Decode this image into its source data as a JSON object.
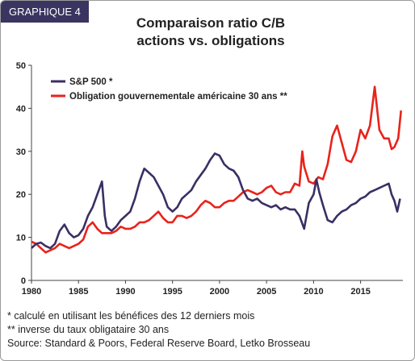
{
  "header": {
    "tag": "GRAPHIQUE 4",
    "title_line1": "Comparaison ratio C/B",
    "title_line2": "actions vs. obligations"
  },
  "footnotes": [
    "* calculé en utilisant les bénéfices des 12 derniers mois",
    "** inverse du taux obligataire 30 ans",
    "Source: Standard & Poors, Federal Reserve Board, Letko Brosseau"
  ],
  "colors": {
    "sp500": "#3a2f63",
    "bond": "#e8231b",
    "axis": "#444444"
  },
  "chart_data": {
    "type": "line",
    "xlim": [
      1980,
      2019.5
    ],
    "ylim": [
      0,
      50
    ],
    "x_ticks": [
      1980,
      1985,
      1990,
      1995,
      2000,
      2005,
      2010,
      2015
    ],
    "y_ticks": [
      0,
      10,
      20,
      30,
      40,
      50
    ],
    "legend_position": "top-left",
    "grid": false,
    "series": [
      {
        "name": "S&P 500 *",
        "color": "#3a2f63",
        "points": [
          [
            1980.0,
            7.5
          ],
          [
            1980.5,
            8.5
          ],
          [
            1981.0,
            8.8
          ],
          [
            1981.5,
            8.0
          ],
          [
            1982.0,
            7.5
          ],
          [
            1982.5,
            8.5
          ],
          [
            1983.0,
            11.5
          ],
          [
            1983.5,
            13.0
          ],
          [
            1984.0,
            11.0
          ],
          [
            1984.5,
            10.0
          ],
          [
            1985.0,
            10.5
          ],
          [
            1985.5,
            12.0
          ],
          [
            1986.0,
            15.0
          ],
          [
            1986.5,
            17.0
          ],
          [
            1987.0,
            20.0
          ],
          [
            1987.5,
            23.0
          ],
          [
            1987.8,
            15.0
          ],
          [
            1988.0,
            12.5
          ],
          [
            1988.5,
            11.5
          ],
          [
            1989.0,
            12.5
          ],
          [
            1989.5,
            14.0
          ],
          [
            1990.0,
            15.0
          ],
          [
            1990.5,
            16.0
          ],
          [
            1991.0,
            19.0
          ],
          [
            1991.5,
            23.0
          ],
          [
            1992.0,
            26.0
          ],
          [
            1992.5,
            25.0
          ],
          [
            1993.0,
            24.0
          ],
          [
            1993.5,
            22.0
          ],
          [
            1994.0,
            20.0
          ],
          [
            1994.5,
            17.0
          ],
          [
            1995.0,
            16.0
          ],
          [
            1995.5,
            17.0
          ],
          [
            1996.0,
            19.0
          ],
          [
            1996.5,
            20.0
          ],
          [
            1997.0,
            21.0
          ],
          [
            1997.5,
            23.0
          ],
          [
            1998.0,
            24.5
          ],
          [
            1998.5,
            26.0
          ],
          [
            1999.0,
            28.0
          ],
          [
            1999.5,
            29.5
          ],
          [
            2000.0,
            29.0
          ],
          [
            2000.5,
            27.0
          ],
          [
            2001.0,
            26.0
          ],
          [
            2001.5,
            25.5
          ],
          [
            2002.0,
            24.0
          ],
          [
            2002.5,
            21.0
          ],
          [
            2003.0,
            19.0
          ],
          [
            2003.5,
            18.5
          ],
          [
            2004.0,
            19.0
          ],
          [
            2004.5,
            18.0
          ],
          [
            2005.0,
            17.5
          ],
          [
            2005.5,
            17.0
          ],
          [
            2006.0,
            17.5
          ],
          [
            2006.5,
            16.5
          ],
          [
            2007.0,
            17.0
          ],
          [
            2007.5,
            16.5
          ],
          [
            2008.0,
            16.5
          ],
          [
            2008.5,
            15.0
          ],
          [
            2009.0,
            12.0
          ],
          [
            2009.5,
            18.0
          ],
          [
            2010.0,
            20.0
          ],
          [
            2010.3,
            23.5
          ],
          [
            2010.6,
            20.5
          ],
          [
            2011.0,
            17.5
          ],
          [
            2011.5,
            14.0
          ],
          [
            2012.0,
            13.5
          ],
          [
            2012.5,
            15.0
          ],
          [
            2013.0,
            16.0
          ],
          [
            2013.5,
            16.5
          ],
          [
            2014.0,
            17.5
          ],
          [
            2014.5,
            18.0
          ],
          [
            2015.0,
            19.0
          ],
          [
            2015.5,
            19.5
          ],
          [
            2016.0,
            20.5
          ],
          [
            2016.5,
            21.0
          ],
          [
            2017.0,
            21.5
          ],
          [
            2017.5,
            22.0
          ],
          [
            2018.0,
            22.5
          ],
          [
            2018.3,
            20.0
          ],
          [
            2018.6,
            18.5
          ],
          [
            2018.9,
            16.0
          ],
          [
            2019.2,
            19.0
          ]
        ]
      },
      {
        "name": "Obligation gouvernementale américaine 30 ans **",
        "color": "#e8231b",
        "points": [
          [
            1980.0,
            9.0
          ],
          [
            1980.5,
            8.5
          ],
          [
            1981.0,
            7.5
          ],
          [
            1981.5,
            6.5
          ],
          [
            1982.0,
            7.0
          ],
          [
            1982.5,
            7.5
          ],
          [
            1983.0,
            8.5
          ],
          [
            1983.5,
            8.0
          ],
          [
            1984.0,
            7.5
          ],
          [
            1984.5,
            8.0
          ],
          [
            1985.0,
            8.5
          ],
          [
            1985.5,
            9.5
          ],
          [
            1986.0,
            12.5
          ],
          [
            1986.5,
            13.5
          ],
          [
            1987.0,
            12.0
          ],
          [
            1987.5,
            11.0
          ],
          [
            1988.0,
            11.0
          ],
          [
            1988.5,
            11.0
          ],
          [
            1989.0,
            11.5
          ],
          [
            1989.5,
            12.5
          ],
          [
            1990.0,
            12.0
          ],
          [
            1990.5,
            12.0
          ],
          [
            1991.0,
            12.5
          ],
          [
            1991.5,
            13.5
          ],
          [
            1992.0,
            13.5
          ],
          [
            1992.5,
            14.0
          ],
          [
            1993.0,
            15.0
          ],
          [
            1993.5,
            16.0
          ],
          [
            1994.0,
            14.5
          ],
          [
            1994.5,
            13.5
          ],
          [
            1995.0,
            13.5
          ],
          [
            1995.5,
            15.0
          ],
          [
            1996.0,
            15.0
          ],
          [
            1996.5,
            14.5
          ],
          [
            1997.0,
            15.0
          ],
          [
            1997.5,
            16.0
          ],
          [
            1998.0,
            17.5
          ],
          [
            1998.5,
            18.5
          ],
          [
            1999.0,
            18.0
          ],
          [
            1999.5,
            17.0
          ],
          [
            2000.0,
            17.0
          ],
          [
            2000.5,
            18.0
          ],
          [
            2001.0,
            18.5
          ],
          [
            2001.5,
            18.5
          ],
          [
            2002.0,
            19.5
          ],
          [
            2002.5,
            20.5
          ],
          [
            2003.0,
            21.0
          ],
          [
            2003.5,
            20.5
          ],
          [
            2004.0,
            20.0
          ],
          [
            2004.5,
            20.5
          ],
          [
            2005.0,
            21.5
          ],
          [
            2005.5,
            22.0
          ],
          [
            2006.0,
            20.5
          ],
          [
            2006.5,
            20.0
          ],
          [
            2007.0,
            20.5
          ],
          [
            2007.5,
            20.5
          ],
          [
            2008.0,
            22.5
          ],
          [
            2008.5,
            22.0
          ],
          [
            2008.8,
            30.0
          ],
          [
            2009.0,
            26.5
          ],
          [
            2009.5,
            23.0
          ],
          [
            2010.0,
            22.5
          ],
          [
            2010.5,
            24.0
          ],
          [
            2011.0,
            23.5
          ],
          [
            2011.5,
            27.0
          ],
          [
            2012.0,
            33.5
          ],
          [
            2012.5,
            36.0
          ],
          [
            2013.0,
            32.0
          ],
          [
            2013.5,
            28.0
          ],
          [
            2014.0,
            27.5
          ],
          [
            2014.5,
            30.0
          ],
          [
            2015.0,
            35.0
          ],
          [
            2015.5,
            33.0
          ],
          [
            2016.0,
            36.0
          ],
          [
            2016.5,
            45.0
          ],
          [
            2017.0,
            35.0
          ],
          [
            2017.5,
            33.0
          ],
          [
            2018.0,
            33.0
          ],
          [
            2018.3,
            30.5
          ],
          [
            2018.6,
            31.0
          ],
          [
            2019.0,
            33.0
          ],
          [
            2019.3,
            39.5
          ]
        ]
      }
    ]
  }
}
